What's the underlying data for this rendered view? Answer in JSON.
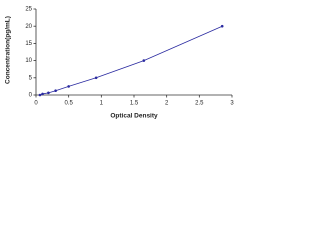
{
  "chart_data": {
    "type": "scatter",
    "x_label": "Optical Density",
    "y_label": "Concentration(pg/mL)",
    "x": [
      0.06,
      0.1,
      0.19,
      0.3,
      0.5,
      0.92,
      1.65,
      2.85
    ],
    "values": [
      0,
      0.31,
      0.63,
      1.25,
      2.5,
      5,
      10,
      20
    ],
    "color": "#2a2aa0",
    "line": true,
    "xlim": [
      0,
      3
    ],
    "xticks": [
      0,
      0.5,
      1,
      1.5,
      2,
      2.5,
      3
    ],
    "ylim": [
      0,
      25
    ],
    "yticks": [
      0,
      5,
      10,
      15,
      20,
      25
    ]
  }
}
